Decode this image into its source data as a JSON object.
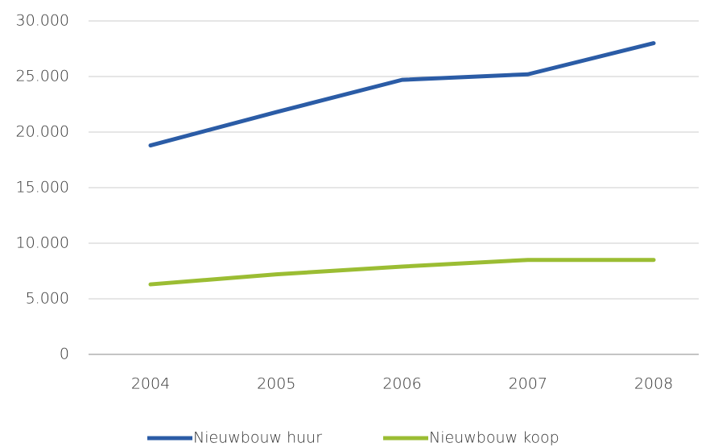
{
  "chart_data": {
    "type": "line",
    "categories": [
      "2004",
      "2005",
      "2006",
      "2007",
      "2008"
    ],
    "series": [
      {
        "name": "Nieuwbouw huur",
        "color": "#2b5ca6",
        "values": [
          18800,
          21800,
          24700,
          25200,
          28000
        ]
      },
      {
        "name": "Nieuwbouw koop",
        "color": "#9bbd33",
        "values": [
          6300,
          7200,
          7900,
          8500,
          8500
        ]
      }
    ],
    "ylim": [
      0,
      30000
    ],
    "yticks": [
      0,
      {
        "value": 5000,
        "label": "5.000"
      },
      {
        "value": 10000,
        "label": "10.000"
      },
      {
        "value": 15000,
        "label": "15.000"
      },
      {
        "value": 20000,
        "label": "20.000"
      },
      {
        "value": 25000,
        "label": "25.000"
      },
      {
        "value": 30000,
        "label": "30.000"
      }
    ],
    "grid": true,
    "legend": "bottom"
  }
}
